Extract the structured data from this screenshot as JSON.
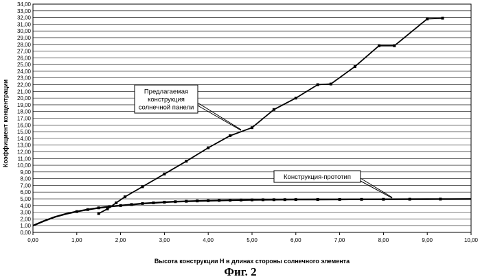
{
  "chart_data": {
    "type": "line",
    "title": "",
    "xlabel": "Высота конструкции Н в длинах стороны солнечного элемента",
    "ylabel": "Коэффициент концентрации",
    "xlim": [
      0,
      10
    ],
    "ylim": [
      0,
      34
    ],
    "x_ticks": [
      "0,00",
      "1,00",
      "2,00",
      "3,00",
      "4,00",
      "5,00",
      "6,00",
      "7,00",
      "8,00",
      "9,00",
      "10,00"
    ],
    "y_ticks": [
      "0,00",
      "1,00",
      "2,00",
      "3,00",
      "4,00",
      "5,00",
      "6,00",
      "7,00",
      "8,00",
      "9,00",
      "10,00",
      "11,00",
      "12,00",
      "13,00",
      "14,00",
      "15,00",
      "16,00",
      "17,00",
      "18,00",
      "19,00",
      "20,00",
      "21,00",
      "22,00",
      "23,00",
      "24,00",
      "25,00",
      "26,00",
      "27,00",
      "28,00",
      "29,00",
      "30,00",
      "31,00",
      "32,00",
      "33,00",
      "34,00"
    ],
    "grid": "horizontal",
    "series": [
      {
        "name": "Предлагаемая конструкция солнечной панели",
        "x": [
          1.5,
          1.7,
          1.9,
          2.1,
          2.5,
          3.0,
          3.5,
          4.0,
          4.5,
          5.0,
          5.5,
          6.0,
          6.5,
          6.8,
          7.35,
          7.9,
          8.25,
          9.0,
          9.35
        ],
        "y": [
          2.8,
          3.5,
          4.4,
          5.3,
          6.8,
          8.7,
          10.6,
          12.6,
          14.4,
          15.6,
          18.3,
          20.0,
          22.0,
          22.1,
          24.7,
          27.8,
          27.8,
          31.8,
          31.9
        ]
      },
      {
        "name": "Конструкция-прототип",
        "x": [
          0.0,
          0.25,
          0.5,
          0.75,
          1.0,
          1.25,
          1.5,
          1.75,
          2.0,
          2.25,
          2.5,
          2.75,
          3.0,
          3.25,
          3.5,
          3.75,
          4.0,
          4.25,
          4.5,
          4.75,
          5.0,
          5.25,
          5.5,
          5.75,
          6.0,
          6.5,
          7.0,
          7.5,
          8.0,
          8.5,
          9.0,
          9.5,
          10.0
        ],
        "y": [
          1.0,
          1.7,
          2.3,
          2.75,
          3.1,
          3.4,
          3.65,
          3.85,
          4.0,
          4.15,
          4.3,
          4.4,
          4.5,
          4.57,
          4.63,
          4.68,
          4.72,
          4.76,
          4.79,
          4.82,
          4.84,
          4.86,
          4.87,
          4.88,
          4.89,
          4.9,
          4.91,
          4.92,
          4.93,
          4.94,
          4.95,
          4.96,
          4.97
        ],
        "marker_x": [
          1.0,
          1.25,
          1.5,
          1.75,
          2.0,
          2.25,
          2.5,
          2.75,
          3.0,
          3.25,
          3.5,
          3.75,
          4.0,
          4.25,
          4.5,
          4.75,
          5.0,
          5.25,
          5.5,
          5.75,
          6.0,
          6.5,
          7.0,
          7.5,
          8.0,
          8.6,
          9.3
        ]
      }
    ],
    "annotations": [
      {
        "lines": [
          "Предлагаемая",
          "конструкция",
          "солнечной панели"
        ],
        "target": [
          4.75,
          15.3
        ]
      },
      {
        "lines": [
          "Конструкция-прототип"
        ],
        "target": [
          8.2,
          5.2
        ]
      }
    ]
  },
  "caption": "Фиг. 2"
}
